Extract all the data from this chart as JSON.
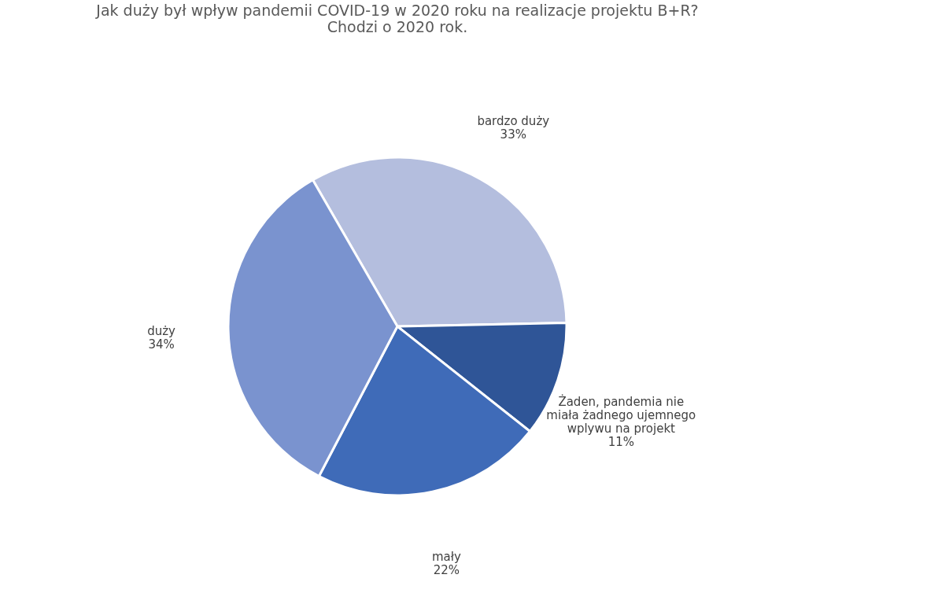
{
  "chart_data": {
    "type": "pie",
    "title": "Jak duży był wpływ pandemii COVID-19 w 2020 roku na realizacje projektu B+R?\nChodzi o 2020 rok.",
    "categories": [
      "bardzo duży",
      "Żaden, pandemia nie miała żadnego ujemnego wplywu na projekt",
      "mały",
      "duży"
    ],
    "values": [
      33,
      11,
      22,
      34
    ],
    "colors": [
      "#b4bede",
      "#2f5597",
      "#3f6bb8",
      "#7a93cf"
    ],
    "value_labels": [
      "33%",
      "11%",
      "22%",
      "34%"
    ],
    "legend": false
  }
}
